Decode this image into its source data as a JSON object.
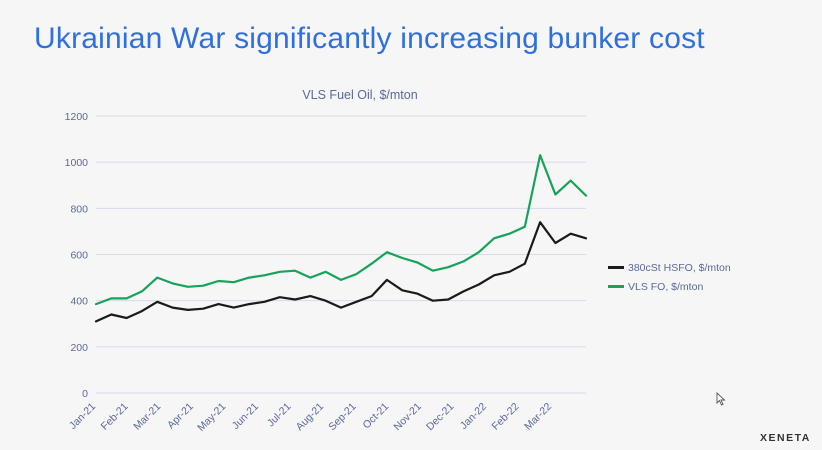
{
  "slide": {
    "headline": "Ukrainian War significantly increasing bunker cost",
    "logo": "XENETA"
  },
  "colors": {
    "headline": "#2f6fe0",
    "hsfo": "#1a1a1a",
    "vlsfo": "#16a35a",
    "axis_text": "#5a6a99",
    "grid": "#d6dbe8"
  },
  "chart_data": {
    "type": "line",
    "title": "VLS Fuel Oil, $/mton",
    "xlabel": "",
    "ylabel": "",
    "ylim": [
      0,
      1200
    ],
    "yticks": [
      0,
      200,
      400,
      600,
      800,
      1000,
      1200
    ],
    "xticks": [
      "Jan-21",
      "Feb-21",
      "Mar-21",
      "Apr-21",
      "May-21",
      "Jun-21",
      "Jul-21",
      "Aug-21",
      "Sep-21",
      "Oct-21",
      "Nov-21",
      "Dec-21",
      "Jan-22",
      "Feb-22",
      "Mar-22"
    ],
    "grid": "horizontal",
    "legend_position": "right",
    "x": [
      "Jan-21",
      "mid Jan-21",
      "Feb-21",
      "mid Feb-21",
      "Mar-21",
      "mid Mar-21",
      "Apr-21",
      "mid Apr-21",
      "May-21",
      "mid May-21",
      "Jun-21",
      "mid Jun-21",
      "Jul-21",
      "mid Jul-21",
      "Aug-21",
      "mid Aug-21",
      "Sep-21",
      "mid Sep-21",
      "Oct-21",
      "mid Oct-21",
      "Nov-21",
      "mid Nov-21",
      "Dec-21",
      "mid Dec-21",
      "Jan-22",
      "mid Jan-22",
      "Feb-22",
      "mid Feb-22",
      "Feb-22 end",
      "early Mar-22",
      "Mar-22",
      "mid Mar-22",
      "late Mar-22"
    ],
    "series": [
      {
        "name": "380cSt HSFO, $/mton",
        "color": "#1a1a1a",
        "values": [
          310,
          340,
          325,
          355,
          395,
          370,
          360,
          365,
          385,
          370,
          385,
          395,
          415,
          405,
          420,
          400,
          370,
          395,
          420,
          490,
          445,
          430,
          400,
          405,
          440,
          470,
          510,
          525,
          560,
          740,
          650,
          690,
          670
        ]
      },
      {
        "name": "VLS FO, $/mton",
        "color": "#16a35a",
        "values": [
          385,
          410,
          410,
          440,
          500,
          475,
          460,
          465,
          485,
          480,
          500,
          510,
          525,
          530,
          500,
          525,
          490,
          515,
          560,
          610,
          585,
          565,
          530,
          545,
          570,
          610,
          670,
          690,
          720,
          1030,
          860,
          920,
          855
        ]
      }
    ]
  }
}
